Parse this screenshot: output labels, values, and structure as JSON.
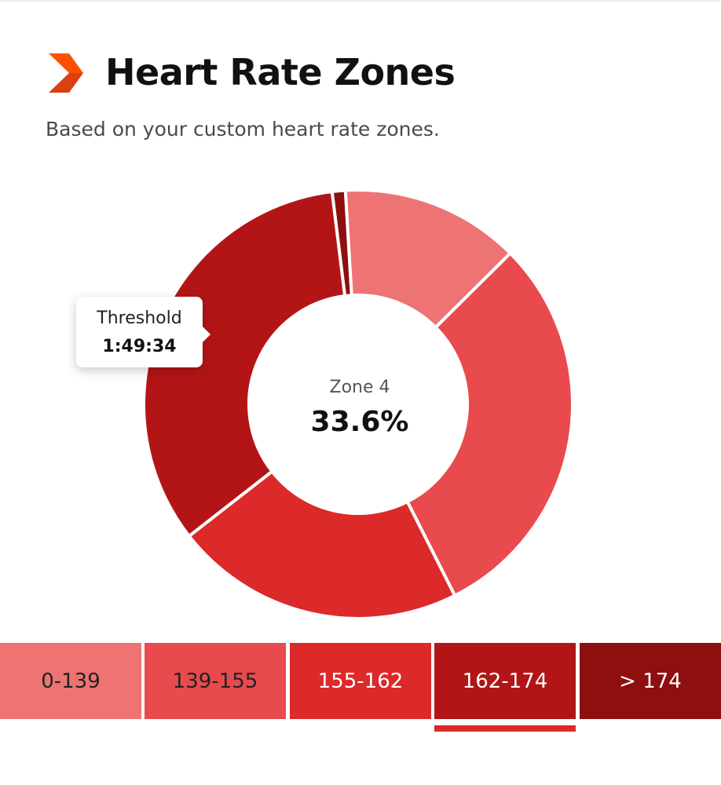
{
  "header": {
    "title": "Heart Rate Zones",
    "subtitle": "Based on your custom heart rate zones.",
    "icon": "chevron-right-icon",
    "icon_colors": [
      "#fc5200",
      "#d94012"
    ]
  },
  "center": {
    "zone_label": "Zone 4",
    "percent": "33.6%"
  },
  "tooltip": {
    "label": "Threshold",
    "value": "1:49:34"
  },
  "chart_data": {
    "type": "pie",
    "subtype": "donut",
    "title": "Heart Rate Zones",
    "subtitle": "Based on your custom heart rate zones.",
    "categories": [
      "0-139",
      "139-155",
      "155-162",
      "162-174",
      "> 174"
    ],
    "values": [
      13.5,
      30.0,
      21.9,
      33.6,
      1.0
    ],
    "unit": "%",
    "colors": [
      "#ee7373",
      "#e84a4d",
      "#dc2a2a",
      "#b31517",
      "#8d0f10"
    ],
    "highlighted": "162-174"
  },
  "legend": {
    "selected_index": 3,
    "items": [
      {
        "label": "0-139",
        "color": "#ee7373",
        "text_color": "#222222"
      },
      {
        "label": "139-155",
        "color": "#e84a4d",
        "text_color": "#222222"
      },
      {
        "label": "155-162",
        "color": "#dc2a2a",
        "text_color": "#ffffff"
      },
      {
        "label": "162-174",
        "color": "#b31517",
        "text_color": "#ffffff"
      },
      {
        "label": "> 174",
        "color": "#8d0f10",
        "text_color": "#ffffff"
      }
    ]
  }
}
